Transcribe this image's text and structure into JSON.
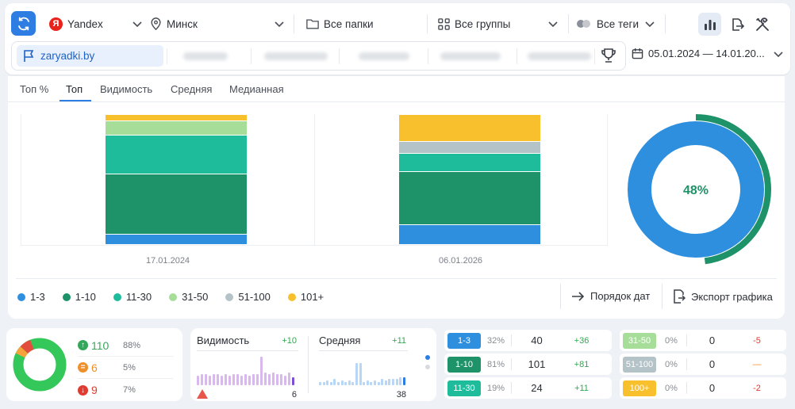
{
  "toolbar": {
    "engine": "Yandex",
    "region": "Минск",
    "folders": "Все папки",
    "groups": "Все группы",
    "tags": "Все теги"
  },
  "sites": {
    "active": "zaryadki.by"
  },
  "date_range": "05.01.2024 — 14.01.20...",
  "tabs": [
    "Топ %",
    "Топ",
    "Видимость",
    "Средняя",
    "Медианная"
  ],
  "active_tab": "Топ",
  "chart_data": {
    "type": "bar",
    "stacked": true,
    "categories": [
      "17.01.2024",
      "06.01.2026"
    ],
    "series": [
      {
        "name": "1-3",
        "color": "#2f8fdf",
        "values": [
          8,
          15
        ]
      },
      {
        "name": "1-10",
        "color": "#1e9268",
        "values": [
          46,
          41
        ]
      },
      {
        "name": "11-30",
        "color": "#1ebc9b",
        "values": [
          30,
          14
        ]
      },
      {
        "name": "31-50",
        "color": "#a5dd99",
        "values": [
          11,
          0
        ]
      },
      {
        "name": "51-100",
        "color": "#b4c3c8",
        "values": [
          0,
          9
        ]
      },
      {
        "name": "101+",
        "color": "#f8c02c",
        "values": [
          5,
          21
        ]
      }
    ]
  },
  "donut": {
    "value_label": "48%",
    "fraction": 0.48,
    "color": "#2f8fdf",
    "arc_color": "#1e9268"
  },
  "legend": [
    "1-3",
    "1-10",
    "11-30",
    "31-50",
    "51-100",
    "101+"
  ],
  "actions": {
    "order": "Порядок дат",
    "export": "Экспорт графика"
  },
  "summary": {
    "donut_colors": [
      "#34c759",
      "#f7a23a",
      "#e34d3d"
    ],
    "rows": [
      {
        "count": "110",
        "pct": "88%",
        "color": "#34a85a"
      },
      {
        "count": "6",
        "pct": "5%",
        "color": "#f0902a"
      },
      {
        "count": "9",
        "pct": "7%",
        "color": "#e03b30"
      }
    ]
  },
  "visibility": {
    "title": "Видимость",
    "delta": "+10",
    "value": "6"
  },
  "average": {
    "title": "Средняя",
    "delta": "+11",
    "value": "38"
  },
  "positions_left": [
    {
      "label": "1-3",
      "pct": "32%",
      "value": "40",
      "delta": "+36",
      "color": "#2f8fdf",
      "delta_color": "#2fa84f"
    },
    {
      "label": "1-10",
      "pct": "81%",
      "value": "101",
      "delta": "+81",
      "color": "#1e9268",
      "delta_color": "#2fa84f"
    },
    {
      "label": "11-30",
      "pct": "19%",
      "value": "24",
      "delta": "+11",
      "color": "#1ebc9b",
      "delta_color": "#2fa84f"
    }
  ],
  "positions_right": [
    {
      "label": "31-50",
      "pct": "0%",
      "value": "0",
      "delta": "-5",
      "color": "#a5dd99",
      "delta_color": "#e03b30"
    },
    {
      "label": "51-100",
      "pct": "0%",
      "value": "0",
      "delta": "—",
      "color": "#b4c3c8",
      "delta_color": "#f0902a"
    },
    {
      "label": "100+",
      "pct": "0%",
      "value": "0",
      "delta": "-2",
      "color": "#f8c02c",
      "delta_color": "#e03b30"
    }
  ]
}
